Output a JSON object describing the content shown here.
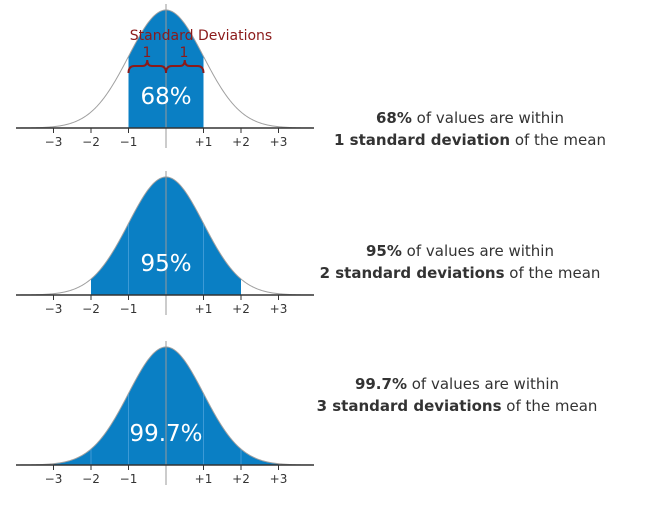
{
  "colors": {
    "fill": "#0a7fc4",
    "curve": "#a0a0a0",
    "axis": "#333333",
    "annotation": "#8b1a1a",
    "text": "#333333",
    "label_text": "#ffffff"
  },
  "annotation": {
    "title": "Standard Deviations",
    "left_one": "1",
    "right_one": "1"
  },
  "ticks": [
    "−3",
    "−2",
    "−1",
    "+1",
    "+2",
    "+3"
  ],
  "panels": [
    {
      "sd": 1,
      "label": "68%",
      "caption_bold_1": "68%",
      "caption_text_1": " of values are within",
      "caption_bold_2": "1 standard deviation",
      "caption_text_2": " of the mean"
    },
    {
      "sd": 2,
      "label": "95%",
      "caption_bold_1": "95%",
      "caption_text_1": " of values are within",
      "caption_bold_2": "2 standard deviations",
      "caption_text_2": " of the mean"
    },
    {
      "sd": 3,
      "label": "99.7%",
      "caption_bold_1": "99.7%",
      "caption_text_1": " of values are within",
      "caption_bold_2": "3 standard deviations",
      "caption_text_2": " of the mean"
    }
  ]
}
